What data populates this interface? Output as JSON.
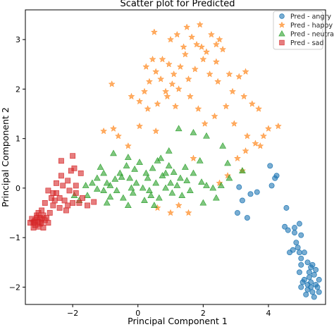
{
  "chart_data": {
    "type": "scatter",
    "title": "Scatter plot for Predicted",
    "xlabel": "Principal Component 1",
    "ylabel": "Principal Component 2",
    "xlim": [
      -3.45,
      5.75
    ],
    "ylim": [
      -2.35,
      3.6
    ],
    "xticks": [
      -2,
      0,
      2,
      4
    ],
    "yticks": [
      -2,
      -1,
      0,
      1,
      2,
      3
    ],
    "grid": false,
    "legend_position": "top-right",
    "series": [
      {
        "name": "Pred - angry",
        "marker": "circle",
        "color": "#1f77b4",
        "points": [
          [
            3.1,
            0.02
          ],
          [
            3.45,
            -0.12
          ],
          [
            3.65,
            -0.08
          ],
          [
            4.05,
            0.45
          ],
          [
            4.2,
            0.2
          ],
          [
            4.25,
            0.25
          ],
          [
            4.1,
            0.05
          ],
          [
            4.55,
            -0.4
          ],
          [
            3.2,
            -0.25
          ],
          [
            3.05,
            -0.5
          ],
          [
            3.35,
            -0.6
          ],
          [
            4.8,
            -0.8
          ],
          [
            4.95,
            -0.72
          ],
          [
            4.5,
            -0.78
          ],
          [
            4.6,
            -0.85
          ],
          [
            4.8,
            -0.9
          ],
          [
            5.0,
            -0.95
          ],
          [
            4.85,
            -1.1
          ],
          [
            4.9,
            -1.2
          ],
          [
            5.1,
            -1.3
          ],
          [
            4.75,
            -1.25
          ],
          [
            5.0,
            -1.42
          ],
          [
            5.2,
            -1.5
          ],
          [
            5.0,
            -1.55
          ],
          [
            5.3,
            -1.6
          ],
          [
            5.25,
            -1.7
          ],
          [
            5.4,
            -1.75
          ],
          [
            5.1,
            -1.85
          ],
          [
            5.3,
            -1.9
          ],
          [
            5.45,
            -1.95
          ],
          [
            5.0,
            -2.0
          ],
          [
            5.2,
            -2.05
          ],
          [
            5.35,
            -2.1
          ],
          [
            5.5,
            -2.0
          ],
          [
            5.4,
            -2.2
          ],
          [
            5.15,
            -2.15
          ],
          [
            5.55,
            -1.85
          ],
          [
            5.25,
            -1.8
          ],
          [
            4.95,
            -1.7
          ],
          [
            5.45,
            -1.65
          ],
          [
            5.05,
            -1.9
          ],
          [
            5.55,
            -2.1
          ],
          [
            5.3,
            -2.0
          ],
          [
            5.35,
            -1.55
          ],
          [
            5.2,
            -1.95
          ],
          [
            4.65,
            -1.3
          ],
          [
            4.95,
            -1.3
          ]
        ]
      },
      {
        "name": "Pred - happy",
        "marker": "star",
        "color": "#ff7f0e",
        "points": [
          [
            0.5,
            3.15
          ],
          [
            1.0,
            3.0
          ],
          [
            1.2,
            3.1
          ],
          [
            1.5,
            3.25
          ],
          [
            1.65,
            3.05
          ],
          [
            1.9,
            3.3
          ],
          [
            1.8,
            2.9
          ],
          [
            2.1,
            2.75
          ],
          [
            2.25,
            3.1
          ],
          [
            2.5,
            3.0
          ],
          [
            2.6,
            2.8
          ],
          [
            2.4,
            2.55
          ],
          [
            1.45,
            2.7
          ],
          [
            1.3,
            2.45
          ],
          [
            1.1,
            2.3
          ],
          [
            0.95,
            2.5
          ],
          [
            0.7,
            2.2
          ],
          [
            0.55,
            2.35
          ],
          [
            0.35,
            2.15
          ],
          [
            0.25,
            2.45
          ],
          [
            0.45,
            2.6
          ],
          [
            -0.8,
            2.1
          ],
          [
            -0.2,
            1.85
          ],
          [
            0.05,
            1.75
          ],
          [
            0.3,
            1.6
          ],
          [
            0.6,
            1.7
          ],
          [
            0.9,
            1.85
          ],
          [
            1.05,
            2.1
          ],
          [
            1.25,
            2.0
          ],
          [
            1.55,
            2.2
          ],
          [
            1.75,
            2.4
          ],
          [
            2.0,
            2.6
          ],
          [
            2.2,
            2.3
          ],
          [
            2.45,
            2.15
          ],
          [
            2.8,
            2.3
          ],
          [
            3.1,
            2.25
          ],
          [
            3.3,
            2.35
          ],
          [
            2.9,
            1.95
          ],
          [
            3.25,
            1.85
          ],
          [
            3.5,
            1.7
          ],
          [
            3.7,
            1.6
          ],
          [
            4.3,
            1.25
          ],
          [
            4.0,
            1.2
          ],
          [
            3.85,
            1.05
          ],
          [
            3.6,
            0.9
          ],
          [
            3.3,
            0.75
          ],
          [
            3.05,
            0.6
          ],
          [
            3.2,
            0.35
          ],
          [
            2.75,
            0.25
          ],
          [
            2.5,
            0.1
          ],
          [
            3.75,
            0.85
          ],
          [
            3.35,
            1.05
          ],
          [
            0.05,
            1.25
          ],
          [
            0.55,
            1.15
          ],
          [
            -1.05,
            1.15
          ],
          [
            -0.75,
            1.2
          ],
          [
            -0.6,
            1.05
          ],
          [
            -0.3,
            0.85
          ],
          [
            1.7,
            0.6
          ],
          [
            1.0,
            -0.5
          ],
          [
            1.25,
            -0.35
          ],
          [
            1.55,
            -0.5
          ],
          [
            0.6,
            -0.4
          ],
          [
            2.4,
            2.9
          ],
          [
            1.95,
            2.85
          ],
          [
            1.4,
            2.85
          ],
          [
            0.75,
            2.6
          ],
          [
            1.6,
            1.85
          ],
          [
            1.85,
            1.6
          ],
          [
            2.35,
            1.45
          ],
          [
            2.05,
            1.3
          ],
          [
            0.2,
            1.95
          ],
          [
            0.85,
            1.95
          ],
          [
            1.15,
            1.65
          ],
          [
            2.7,
            1.65
          ],
          [
            2.95,
            1.3
          ]
        ]
      },
      {
        "name": "Pred - neutral",
        "marker": "triangle",
        "color": "#2ca02c",
        "points": [
          [
            -1.6,
            0.05
          ],
          [
            -1.4,
            0.1
          ],
          [
            -1.25,
            0.2
          ],
          [
            -1.05,
            0.3
          ],
          [
            -0.95,
            0.1
          ],
          [
            -0.85,
            0.05
          ],
          [
            -0.7,
            0.18
          ],
          [
            -0.55,
            0.3
          ],
          [
            -0.35,
            0.45
          ],
          [
            -0.25,
            0.2
          ],
          [
            -0.1,
            0.38
          ],
          [
            0.05,
            0.52
          ],
          [
            0.25,
            0.3
          ],
          [
            0.45,
            0.4
          ],
          [
            0.6,
            0.55
          ],
          [
            0.75,
            0.25
          ],
          [
            0.95,
            0.45
          ],
          [
            1.1,
            0.32
          ],
          [
            1.3,
            0.2
          ],
          [
            1.5,
            0.15
          ],
          [
            1.7,
            0.3
          ],
          [
            1.95,
            0.12
          ],
          [
            2.1,
            0.05
          ],
          [
            2.3,
            0.0
          ],
          [
            2.55,
            0.05
          ],
          [
            2.8,
            0.2
          ],
          [
            3.2,
            0.35
          ],
          [
            -0.05,
            0.1
          ],
          [
            0.15,
            0.0
          ],
          [
            0.35,
            -0.05
          ],
          [
            0.55,
            0.1
          ],
          [
            0.85,
            0.0
          ],
          [
            1.05,
            -0.1
          ],
          [
            1.2,
            0.05
          ],
          [
            0.65,
            -0.2
          ],
          [
            0.4,
            -0.15
          ],
          [
            0.2,
            -0.25
          ],
          [
            -0.15,
            -0.1
          ],
          [
            -0.45,
            -0.2
          ],
          [
            -0.65,
            -0.05
          ],
          [
            -0.85,
            -0.18
          ],
          [
            -1.05,
            -0.05
          ],
          [
            -1.25,
            -0.02
          ],
          [
            -1.55,
            -0.15
          ],
          [
            -1.8,
            -0.25
          ],
          [
            -1.95,
            -0.15
          ],
          [
            -0.75,
            0.7
          ],
          [
            1.25,
            1.2
          ],
          [
            1.7,
            1.12
          ],
          [
            2.1,
            1.05
          ],
          [
            2.6,
            0.85
          ],
          [
            2.75,
            0.5
          ],
          [
            1.9,
            0.55
          ],
          [
            0.95,
            0.75
          ],
          [
            0.7,
            0.6
          ],
          [
            -0.3,
            0.62
          ],
          [
            -0.5,
            0.22
          ],
          [
            1.45,
            0.42
          ],
          [
            1.6,
            -0.05
          ],
          [
            0.5,
            -0.35
          ],
          [
            0.3,
            0.2
          ],
          [
            -0.2,
            0.0
          ],
          [
            1.35,
            -0.15
          ],
          [
            2.0,
            -0.3
          ],
          [
            2.4,
            -0.2
          ],
          [
            1.0,
            0.1
          ],
          [
            0.85,
            0.3
          ],
          [
            -1.15,
            0.42
          ],
          [
            -0.95,
            -0.3
          ],
          [
            -0.3,
            -0.35
          ]
        ]
      },
      {
        "name": "Pred - sad",
        "marker": "square",
        "color": "#d62728",
        "points": [
          [
            -2.0,
            0.65
          ],
          [
            -1.75,
            0.3
          ],
          [
            -2.35,
            0.25
          ],
          [
            -2.15,
            0.15
          ],
          [
            -2.5,
            0.1
          ],
          [
            -2.3,
            0.05
          ],
          [
            -2.1,
            -0.05
          ],
          [
            -1.9,
            -0.1
          ],
          [
            -1.7,
            -0.2
          ],
          [
            -2.5,
            -0.1
          ],
          [
            -2.65,
            -0.2
          ],
          [
            -2.25,
            -0.25
          ],
          [
            -2.0,
            -0.3
          ],
          [
            -1.8,
            -0.3
          ],
          [
            -1.55,
            -0.35
          ],
          [
            -1.35,
            -0.28
          ],
          [
            -2.75,
            -0.05
          ],
          [
            -2.85,
            -0.3
          ],
          [
            -2.6,
            -0.35
          ],
          [
            -2.4,
            -0.4
          ],
          [
            -2.2,
            -0.45
          ],
          [
            -2.95,
            -0.45
          ],
          [
            -3.05,
            -0.5
          ],
          [
            -2.7,
            -0.5
          ],
          [
            -2.9,
            -0.55
          ],
          [
            -3.1,
            -0.6
          ],
          [
            -3.15,
            -0.65
          ],
          [
            -3.2,
            -0.7
          ],
          [
            -3.0,
            -0.72
          ],
          [
            -2.85,
            -0.65
          ],
          [
            -2.95,
            -0.7
          ],
          [
            -3.25,
            -0.62
          ],
          [
            -3.15,
            -0.75
          ],
          [
            -3.05,
            -0.78
          ],
          [
            -2.8,
            -0.6
          ],
          [
            -3.1,
            -0.55
          ],
          [
            -3.0,
            -0.6
          ],
          [
            -2.9,
            -0.8
          ],
          [
            -3.2,
            -0.8
          ],
          [
            -3.3,
            -0.7
          ],
          [
            -2.75,
            -0.7
          ],
          [
            -3.05,
            -0.68
          ],
          [
            -2.95,
            -0.62
          ],
          [
            -3.18,
            -0.68
          ],
          [
            -2.6,
            -0.1
          ],
          [
            -2.4,
            -0.2
          ],
          [
            -2.15,
            -0.35
          ],
          [
            -1.95,
            0.4
          ],
          [
            -2.35,
            0.55
          ],
          [
            -2.05,
            0.35
          ],
          [
            -2.55,
            -0.25
          ],
          [
            -1.9,
            0.05
          ]
        ]
      }
    ]
  }
}
